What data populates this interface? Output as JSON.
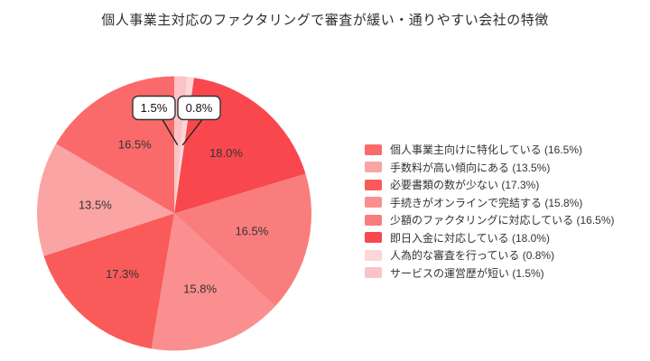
{
  "chart_data": {
    "type": "pie",
    "title": "個人事業主対応のファクタリングで審査が緩い・通りやすい会社の特徴",
    "legend_position": "right",
    "start_angle_deg": 90,
    "direction": "counterclockwise",
    "label_format": "percent",
    "slices": [
      {
        "label": "個人事業主向けに特化している",
        "value": 16.5,
        "display": "16.5%",
        "color": "#fa6a6a"
      },
      {
        "label": "手数料が高い傾向にある",
        "value": 13.5,
        "display": "13.5%",
        "color": "#fba4a4"
      },
      {
        "label": "必要書類の数が少ない",
        "value": 17.3,
        "display": "17.3%",
        "color": "#f95b5b"
      },
      {
        "label": "手続きがオンラインで完結する",
        "value": 15.8,
        "display": "15.8%",
        "color": "#fb8f8f"
      },
      {
        "label": "少額のファクタリングに対応している",
        "value": 16.5,
        "display": "16.5%",
        "color": "#fa7d7d"
      },
      {
        "label": "即日入金に対応している",
        "value": 18.0,
        "display": "18.0%",
        "color": "#f8484e"
      },
      {
        "label": "人為的な審査を行っている",
        "value": 0.8,
        "display": "0.8%",
        "color": "#fdd7d8"
      },
      {
        "label": "サービスの運営歴が短い",
        "value": 1.5,
        "display": "1.5%",
        "color": "#fcc3c6"
      }
    ],
    "callouts": [
      {
        "slice_index": 7,
        "display": "1.5%"
      },
      {
        "slice_index": 6,
        "display": "0.8%"
      }
    ],
    "legend_format": "{label}（{display}）",
    "legend_separator_open": " (",
    "legend_separator_close": ")"
  }
}
